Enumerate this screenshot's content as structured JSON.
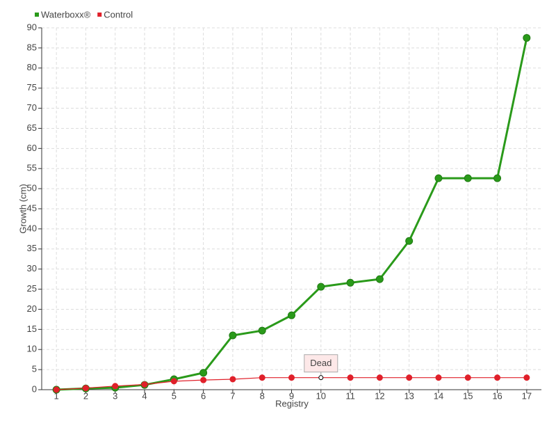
{
  "chart_data": {
    "type": "line",
    "x_label": "Registry",
    "y_label": "Growth (cm)",
    "categories": [
      "1",
      "2",
      "3",
      "4",
      "5",
      "6",
      "7",
      "8",
      "9",
      "10",
      "11",
      "12",
      "13",
      "14",
      "15",
      "16",
      "17"
    ],
    "series": [
      {
        "name": "Waterboxx®",
        "color": "#2a9a1a",
        "values": [
          0,
          0.3,
          0.5,
          1.2,
          2.6,
          4.2,
          13.5,
          14.7,
          18.5,
          25.6,
          26.6,
          27.5,
          37,
          52.6,
          52.6,
          52.6,
          87.5
        ]
      },
      {
        "name": "Control",
        "color": "#e0202a",
        "values": [
          0,
          0.4,
          0.9,
          1.3,
          2.1,
          2.4,
          2.6,
          3,
          3,
          3,
          3,
          3,
          3,
          3,
          3,
          3,
          3
        ]
      }
    ],
    "annotations": [
      {
        "text": "Dead",
        "category": "10",
        "series": "Control"
      }
    ],
    "ylim": [
      0,
      90
    ],
    "yticks": [
      0,
      5,
      10,
      15,
      20,
      25,
      30,
      35,
      40,
      45,
      50,
      55,
      60,
      65,
      70,
      75,
      80,
      85,
      90
    ],
    "grid": true,
    "legend": "top-left"
  }
}
